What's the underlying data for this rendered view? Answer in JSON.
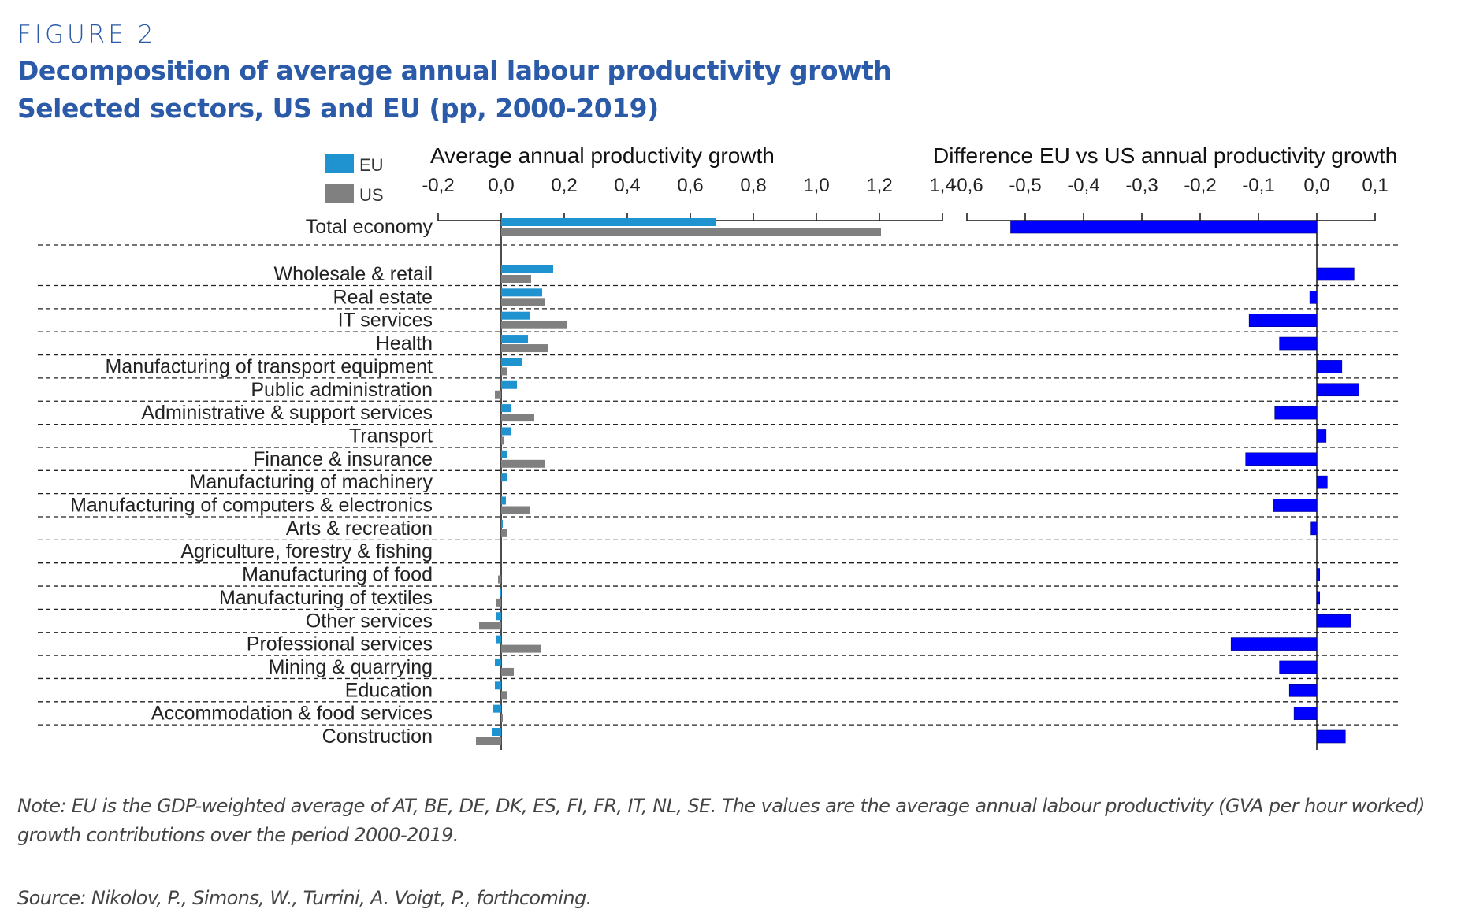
{
  "figure_label": "FIGURE 2",
  "title_line1": "Decomposition of average annual labour productivity growth",
  "title_line2": "Selected sectors, US and EU (pp, 2000-2019)",
  "note": "Note: EU is the GDP-weighted average of AT, BE, DE, DK, ES, FI, FR, IT, NL, SE. The values are the average annual labour productivity (GVA per hour worked) growth contributions over the period 2000-2019.",
  "source": "Source: Nikolov, P., Simons, W., Turrini, A. Voigt, P., forthcoming.",
  "colors": {
    "EU": "#1f93d0",
    "US": "#808080",
    "difference": "#0000ff"
  },
  "chart_data": [
    {
      "type": "bar",
      "orientation": "horizontal",
      "title": "Average annual productivity growth",
      "legend": [
        "EU",
        "US"
      ],
      "legend_position": "top-left",
      "xlim": [
        -0.2,
        1.4
      ],
      "xticks": [
        "-0,2",
        "0,0",
        "0,2",
        "0,4",
        "0,6",
        "0,8",
        "1,0",
        "1,2",
        "1,4"
      ],
      "xtick_values": [
        -0.2,
        0.0,
        0.2,
        0.4,
        0.6,
        0.8,
        1.0,
        1.2,
        1.4
      ],
      "categories": [
        "Total economy",
        "Wholesale & retail",
        "Real estate",
        "IT services",
        "Health",
        "Manufacturing of transport equipment",
        "Public administration",
        "Administrative & support services",
        "Transport",
        "Finance & insurance",
        "Manufacturing of machinery",
        "Manufacturing of computers & electronics",
        "Arts & recreation",
        "Agriculture, forestry & fishing",
        "Manufacturing of food",
        "Manufacturing of textiles",
        "Other services",
        "Professional services",
        "Mining & quarrying",
        "Education",
        "Accommodation & food services",
        "Construction"
      ],
      "series": [
        {
          "name": "EU",
          "values": [
            0.68,
            0.165,
            0.13,
            0.09,
            0.085,
            0.065,
            0.05,
            0.03,
            0.03,
            0.02,
            0.02,
            0.015,
            0.005,
            0.0,
            0.0,
            -0.005,
            -0.015,
            -0.015,
            -0.02,
            -0.02,
            -0.025,
            -0.03
          ]
        },
        {
          "name": "US",
          "values": [
            1.205,
            0.095,
            0.14,
            0.21,
            0.15,
            0.02,
            -0.02,
            0.105,
            0.01,
            0.14,
            0.0,
            0.09,
            0.02,
            0.0,
            -0.01,
            -0.015,
            -0.07,
            0.125,
            0.04,
            0.02,
            0.005,
            -0.08
          ]
        }
      ],
      "grid": "dashed row separators"
    },
    {
      "type": "bar",
      "orientation": "horizontal",
      "title": "Difference EU vs US annual productivity growth",
      "xlim": [
        -0.6,
        0.1
      ],
      "xticks": [
        "-0,6",
        "-0,5",
        "-0,4",
        "-0,3",
        "-0,2",
        "-0,1",
        "0,0",
        "0,1"
      ],
      "xtick_values": [
        -0.6,
        -0.5,
        -0.4,
        -0.3,
        -0.2,
        -0.1,
        0.0,
        0.1
      ],
      "categories": [
        "Total economy",
        "Wholesale & retail",
        "Real estate",
        "IT services",
        "Health",
        "Manufacturing of transport equipment",
        "Public administration",
        "Administrative & support services",
        "Transport",
        "Finance & insurance",
        "Manufacturing of machinery",
        "Manufacturing of computers & electronics",
        "Arts & recreation",
        "Agriculture, forestry & fishing",
        "Manufacturing of food",
        "Manufacturing of textiles",
        "Other services",
        "Professional services",
        "Mining & quarrying",
        "Education",
        "Accommodation & food services",
        "Construction"
      ],
      "series": [
        {
          "name": "Difference",
          "values": [
            -0.525,
            0.064,
            -0.012,
            -0.116,
            -0.064,
            0.043,
            0.072,
            -0.072,
            0.016,
            -0.122,
            0.018,
            -0.075,
            -0.01,
            0.0,
            0.005,
            0.005,
            0.058,
            -0.147,
            -0.064,
            -0.047,
            -0.039,
            0.049
          ]
        }
      ]
    }
  ]
}
